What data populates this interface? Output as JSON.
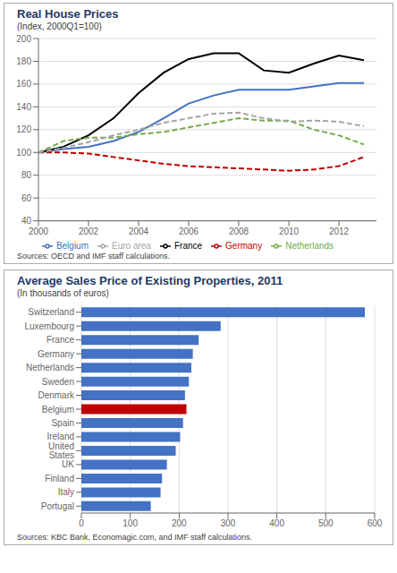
{
  "chart_data": [
    {
      "type": "line",
      "title": "Real House Prices",
      "subtitle": "(Index, 2000Q1=100)",
      "annotations": [
        "Sources: OECD and IMF staff calculations."
      ],
      "xlim": [
        2000,
        2013.5
      ],
      "xticks": [
        2000,
        2002,
        2004,
        2006,
        2008,
        2010,
        2012
      ],
      "ylim": [
        40,
        200
      ],
      "yticks": [
        40,
        60,
        80,
        100,
        120,
        140,
        160,
        180,
        200
      ],
      "grid": true,
      "legend": "bottom",
      "x": [
        2000,
        2001,
        2002,
        2003,
        2004,
        2005,
        2006,
        2007,
        2008,
        2009,
        2010,
        2011,
        2012,
        2013
      ],
      "series": [
        {
          "name": "Belgium",
          "color": "#4472C4",
          "line_style": "solid",
          "values": [
            100,
            103,
            105,
            110,
            118,
            130,
            143,
            150,
            155,
            155,
            155,
            158,
            161,
            161
          ]
        },
        {
          "name": "Germany",
          "color": "#C00000",
          "line_style": "dashed",
          "values": [
            100,
            100,
            99,
            96,
            93,
            90,
            88,
            87,
            86,
            85,
            84,
            85,
            88,
            96
          ]
        },
        {
          "name": "France",
          "color": "#000000",
          "line_style": "solid",
          "values": [
            100,
            105,
            115,
            130,
            152,
            170,
            182,
            187,
            187,
            172,
            170,
            178,
            185,
            181
          ]
        },
        {
          "name": "Netherlands",
          "color": "#70AD47",
          "line_style": "dashed",
          "values": [
            100,
            110,
            113,
            113,
            116,
            118,
            122,
            126,
            130,
            128,
            128,
            120,
            115,
            107
          ]
        },
        {
          "name": "Euro area",
          "color": "#A5A5A5",
          "line_style": "dashed",
          "values": [
            100,
            104,
            109,
            115,
            120,
            126,
            130,
            134,
            135,
            130,
            127,
            128,
            127,
            123
          ]
        }
      ]
    },
    {
      "type": "bar",
      "orientation": "horizontal",
      "title": "Average Sales Price of Existing Properties, 2011",
      "subtitle": "(In thousands of euros)",
      "annotations": [
        "Sources: KBC Bank, Economagic.com, and IMF staff calculations."
      ],
      "categories": [
        "Switzerland",
        "Luxembourg",
        "France",
        "Germany",
        "Netherlands",
        "Sweden",
        "Denmark",
        "Belgium",
        "Spain",
        "Ireland",
        "United States",
        "UK",
        "Finland",
        "Italy",
        "Portugal"
      ],
      "values": [
        580,
        285,
        240,
        228,
        225,
        220,
        212,
        215,
        208,
        202,
        193,
        175,
        165,
        162,
        142
      ],
      "colors": [
        "#4472C4",
        "#4472C4",
        "#4472C4",
        "#4472C4",
        "#4472C4",
        "#4472C4",
        "#4472C4",
        "#C00000",
        "#4472C4",
        "#4472C4",
        "#4472C4",
        "#4472C4",
        "#4472C4",
        "#4472C4",
        "#4472C4"
      ],
      "xlim": [
        0,
        600
      ],
      "xticks": [
        0,
        100,
        200,
        300,
        400,
        500,
        600
      ],
      "grid": true
    }
  ]
}
